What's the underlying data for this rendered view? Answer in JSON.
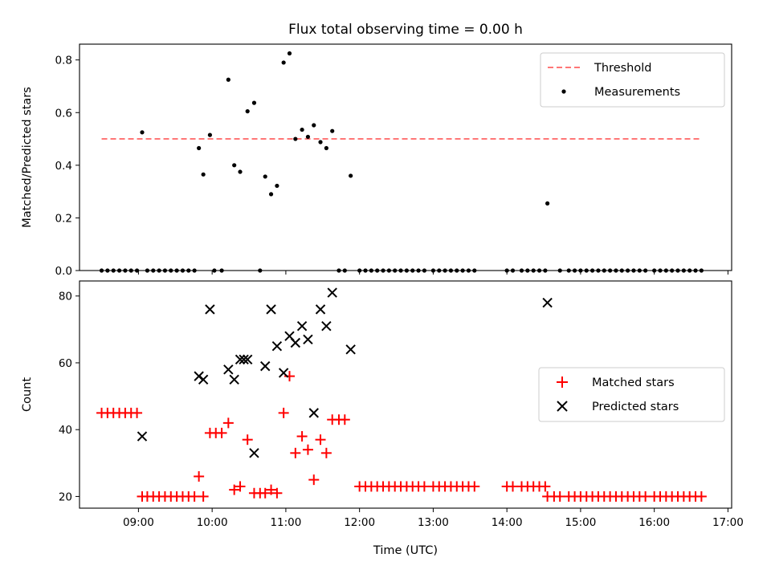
{
  "chart_data": [
    {
      "type": "scatter",
      "title": "Flux total observing time = 0.00 h",
      "xlabel": "",
      "ylabel": "Matched/Predicted stars",
      "ylim": [
        0.0,
        0.86
      ],
      "yticks": [
        0.0,
        0.2,
        0.4,
        0.6,
        0.8
      ],
      "ytick_labels": [
        "0.0",
        "0.2",
        "0.4",
        "0.6",
        "0.8"
      ],
      "xlim": [
        8.2,
        17.05
      ],
      "xticks": [
        9,
        10,
        11,
        12,
        13,
        14,
        15,
        16,
        17
      ],
      "grid": false,
      "legend_position": "top-right",
      "threshold": {
        "name": "Threshold",
        "value": 0.5,
        "x_range": [
          8.5,
          16.65
        ],
        "color": "#ff7777"
      },
      "measurements": {
        "name": "Measurements",
        "color": "#000000",
        "points": [
          [
            8.5,
            0
          ],
          [
            8.58,
            0
          ],
          [
            8.66,
            0
          ],
          [
            8.74,
            0
          ],
          [
            8.82,
            0
          ],
          [
            8.9,
            0
          ],
          [
            8.98,
            0
          ],
          [
            9.05,
            0.525
          ],
          [
            9.12,
            0
          ],
          [
            9.2,
            0
          ],
          [
            9.28,
            0
          ],
          [
            9.36,
            0
          ],
          [
            9.44,
            0
          ],
          [
            9.52,
            0
          ],
          [
            9.6,
            0
          ],
          [
            9.68,
            0
          ],
          [
            9.76,
            0
          ],
          [
            9.82,
            0.465
          ],
          [
            9.88,
            0.365
          ],
          [
            9.97,
            0.515
          ],
          [
            10.03,
            0
          ],
          [
            10.13,
            0
          ],
          [
            10.22,
            0.725
          ],
          [
            10.3,
            0.4
          ],
          [
            10.38,
            0.375
          ],
          [
            10.48,
            0.605
          ],
          [
            10.57,
            0.637
          ],
          [
            10.65,
            0
          ],
          [
            10.72,
            0.357
          ],
          [
            10.8,
            0.29
          ],
          [
            10.88,
            0.322
          ],
          [
            10.97,
            0.79
          ],
          [
            11.05,
            0.825
          ],
          [
            11.13,
            0.5
          ],
          [
            11.22,
            0.535
          ],
          [
            11.3,
            0.508
          ],
          [
            11.38,
            0.552
          ],
          [
            11.47,
            0.488
          ],
          [
            11.55,
            0.465
          ],
          [
            11.63,
            0.53
          ],
          [
            11.72,
            0
          ],
          [
            11.8,
            0
          ],
          [
            11.88,
            0.36
          ],
          [
            12.0,
            0
          ],
          [
            12.08,
            0
          ],
          [
            12.16,
            0
          ],
          [
            12.24,
            0
          ],
          [
            12.32,
            0
          ],
          [
            12.4,
            0
          ],
          [
            12.48,
            0
          ],
          [
            12.56,
            0
          ],
          [
            12.64,
            0
          ],
          [
            12.72,
            0
          ],
          [
            12.8,
            0
          ],
          [
            12.88,
            0
          ],
          [
            13.0,
            0
          ],
          [
            13.08,
            0
          ],
          [
            13.16,
            0
          ],
          [
            13.24,
            0
          ],
          [
            13.32,
            0
          ],
          [
            13.4,
            0
          ],
          [
            13.48,
            0
          ],
          [
            13.56,
            0
          ],
          [
            14.0,
            0
          ],
          [
            14.08,
            0
          ],
          [
            14.2,
            0
          ],
          [
            14.28,
            0
          ],
          [
            14.36,
            0
          ],
          [
            14.44,
            0
          ],
          [
            14.52,
            0
          ],
          [
            14.55,
            0.255
          ],
          [
            14.72,
            0
          ],
          [
            14.84,
            0
          ],
          [
            14.92,
            0
          ],
          [
            15.0,
            0
          ],
          [
            15.08,
            0
          ],
          [
            15.16,
            0
          ],
          [
            15.24,
            0
          ],
          [
            15.32,
            0
          ],
          [
            15.4,
            0
          ],
          [
            15.48,
            0
          ],
          [
            15.56,
            0
          ],
          [
            15.64,
            0
          ],
          [
            15.72,
            0
          ],
          [
            15.8,
            0
          ],
          [
            15.88,
            0
          ],
          [
            16.0,
            0
          ],
          [
            16.08,
            0
          ],
          [
            16.16,
            0
          ],
          [
            16.24,
            0
          ],
          [
            16.32,
            0
          ],
          [
            16.4,
            0
          ],
          [
            16.48,
            0
          ],
          [
            16.56,
            0
          ],
          [
            16.64,
            0
          ]
        ]
      }
    },
    {
      "type": "scatter",
      "title": "",
      "xlabel": "Time (UTC)",
      "ylabel": "Count",
      "ylim": [
        16.5,
        84.5
      ],
      "yticks": [
        20,
        40,
        60,
        80
      ],
      "ytick_labels": [
        "20",
        "40",
        "60",
        "80"
      ],
      "xlim": [
        8.2,
        17.05
      ],
      "xticks": [
        9,
        10,
        11,
        12,
        13,
        14,
        15,
        16,
        17
      ],
      "xtick_labels": [
        "09:00",
        "10:00",
        "11:00",
        "12:00",
        "13:00",
        "14:00",
        "15:00",
        "16:00",
        "17:00"
      ],
      "grid": false,
      "legend_position": "center-right",
      "series": [
        {
          "name": "Matched stars",
          "marker": "+",
          "color": "#ff0000",
          "points": [
            [
              8.5,
              45
            ],
            [
              8.58,
              45
            ],
            [
              8.66,
              45
            ],
            [
              8.74,
              45
            ],
            [
              8.82,
              45
            ],
            [
              8.9,
              45
            ],
            [
              8.98,
              45
            ],
            [
              9.05,
              20
            ],
            [
              9.12,
              20
            ],
            [
              9.2,
              20
            ],
            [
              9.28,
              20
            ],
            [
              9.36,
              20
            ],
            [
              9.44,
              20
            ],
            [
              9.52,
              20
            ],
            [
              9.6,
              20
            ],
            [
              9.68,
              20
            ],
            [
              9.76,
              20
            ],
            [
              9.82,
              26
            ],
            [
              9.88,
              20
            ],
            [
              9.97,
              39
            ],
            [
              10.05,
              39
            ],
            [
              10.13,
              39
            ],
            [
              10.22,
              42
            ],
            [
              10.3,
              22
            ],
            [
              10.38,
              23
            ],
            [
              10.48,
              37
            ],
            [
              10.57,
              21
            ],
            [
              10.65,
              21
            ],
            [
              10.72,
              21
            ],
            [
              10.8,
              22
            ],
            [
              10.88,
              21
            ],
            [
              10.97,
              45
            ],
            [
              11.05,
              56
            ],
            [
              11.13,
              33
            ],
            [
              11.22,
              38
            ],
            [
              11.3,
              34
            ],
            [
              11.38,
              25
            ],
            [
              11.47,
              37
            ],
            [
              11.55,
              33
            ],
            [
              11.63,
              43
            ],
            [
              11.72,
              43
            ],
            [
              11.8,
              43
            ],
            [
              12.0,
              23
            ],
            [
              12.08,
              23
            ],
            [
              12.16,
              23
            ],
            [
              12.24,
              23
            ],
            [
              12.32,
              23
            ],
            [
              12.4,
              23
            ],
            [
              12.48,
              23
            ],
            [
              12.56,
              23
            ],
            [
              12.64,
              23
            ],
            [
              12.72,
              23
            ],
            [
              12.8,
              23
            ],
            [
              12.88,
              23
            ],
            [
              13.0,
              23
            ],
            [
              13.08,
              23
            ],
            [
              13.16,
              23
            ],
            [
              13.24,
              23
            ],
            [
              13.32,
              23
            ],
            [
              13.4,
              23
            ],
            [
              13.48,
              23
            ],
            [
              13.56,
              23
            ],
            [
              14.0,
              23
            ],
            [
              14.08,
              23
            ],
            [
              14.2,
              23
            ],
            [
              14.28,
              23
            ],
            [
              14.36,
              23
            ],
            [
              14.44,
              23
            ],
            [
              14.52,
              23
            ],
            [
              14.55,
              20
            ],
            [
              14.64,
              20
            ],
            [
              14.72,
              20
            ],
            [
              14.84,
              20
            ],
            [
              14.92,
              20
            ],
            [
              15.0,
              20
            ],
            [
              15.08,
              20
            ],
            [
              15.16,
              20
            ],
            [
              15.24,
              20
            ],
            [
              15.32,
              20
            ],
            [
              15.4,
              20
            ],
            [
              15.48,
              20
            ],
            [
              15.56,
              20
            ],
            [
              15.64,
              20
            ],
            [
              15.72,
              20
            ],
            [
              15.8,
              20
            ],
            [
              15.88,
              20
            ],
            [
              16.0,
              20
            ],
            [
              16.08,
              20
            ],
            [
              16.16,
              20
            ],
            [
              16.24,
              20
            ],
            [
              16.32,
              20
            ],
            [
              16.4,
              20
            ],
            [
              16.48,
              20
            ],
            [
              16.56,
              20
            ],
            [
              16.64,
              20
            ]
          ]
        },
        {
          "name": "Predicted stars",
          "marker": "x",
          "color": "#000000",
          "points": [
            [
              9.05,
              38
            ],
            [
              9.82,
              56
            ],
            [
              9.88,
              55
            ],
            [
              9.97,
              76
            ],
            [
              10.22,
              58
            ],
            [
              10.3,
              55
            ],
            [
              10.38,
              61
            ],
            [
              10.43,
              61
            ],
            [
              10.48,
              61
            ],
            [
              10.57,
              33
            ],
            [
              10.72,
              59
            ],
            [
              10.8,
              76
            ],
            [
              10.88,
              65
            ],
            [
              10.97,
              57
            ],
            [
              11.05,
              68
            ],
            [
              11.13,
              66
            ],
            [
              11.22,
              71
            ],
            [
              11.3,
              67
            ],
            [
              11.38,
              45
            ],
            [
              11.47,
              76
            ],
            [
              11.55,
              71
            ],
            [
              11.63,
              81
            ],
            [
              11.88,
              64
            ],
            [
              14.55,
              78
            ]
          ]
        }
      ]
    }
  ]
}
